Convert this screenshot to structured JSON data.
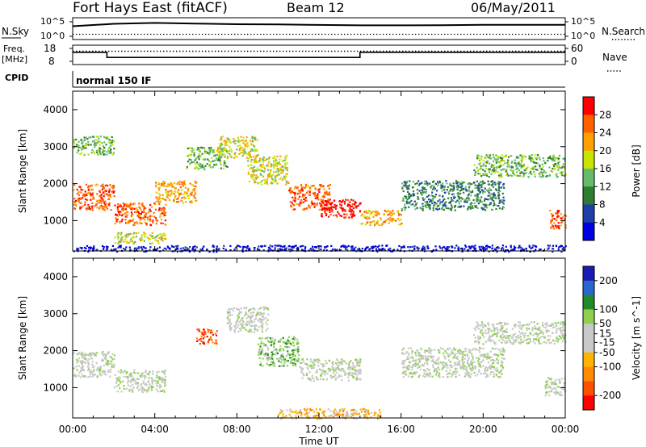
{
  "header": {
    "station": "Fort Hays East (fitACF)",
    "beam": "Beam 12",
    "date": "06/May/2011"
  },
  "left_labels": {
    "nsky": "N.Sky",
    "nsky_ticks": [
      "10^5",
      "10^0"
    ],
    "freq": "Freq.",
    "freq_unit": "[MHz]",
    "freq_ticks": [
      "18",
      "8"
    ],
    "cpid": "CPID"
  },
  "right_labels": {
    "nsearch": "N.Search",
    "nsearch_ticks": [
      "10^5",
      "10^0"
    ],
    "nave": "Nave",
    "nave_ticks": [
      "60",
      "0"
    ]
  },
  "cpid_text": "normal 150 IF",
  "colors": {
    "power": [
      "#0000e0",
      "#1f3fa8",
      "#2e7d32",
      "#66bb6a",
      "#c8e400",
      "#ffa000",
      "#ff6000",
      "#ff0000"
    ],
    "velocity": [
      "#1a1ab4",
      "#2b66cc",
      "#1f8a2a",
      "#8fd14f",
      "#c8c8c8",
      "#c8c8c8",
      "#ffb300",
      "#ff8c00",
      "#ff5000",
      "#ff0000"
    ]
  },
  "chart_data": [
    {
      "type": "line",
      "panel": "N.Sky / N.Search",
      "x": [
        "00:00",
        "02:00",
        "04:00",
        "06:00",
        "08:00",
        "10:00",
        "12:00",
        "14:00",
        "16:00",
        "18:00",
        "20:00",
        "22:00",
        "24:00"
      ],
      "series": [
        {
          "name": "N.Sky",
          "values": [
            3000,
            20000,
            40000,
            25000,
            15000,
            12000,
            8000,
            6000,
            6000,
            7000,
            9000,
            9000,
            9000
          ]
        },
        {
          "name": "N.Search",
          "values": [
            5,
            5,
            5,
            5,
            5,
            5,
            5,
            5,
            5,
            5,
            5,
            5,
            5
          ]
        }
      ],
      "ylim": [
        1,
        100000
      ],
      "yscale": "log"
    },
    {
      "type": "line",
      "panel": "Freq. / Nave",
      "x": [
        "00:00",
        "01:40",
        "01:40",
        "14:00",
        "14:00",
        "24:00"
      ],
      "series": [
        {
          "name": "Freq.",
          "values": [
            15,
            15,
            11,
            11,
            15,
            15
          ]
        },
        {
          "name": "Nave",
          "values": [
            47,
            47,
            47,
            47,
            47,
            47
          ]
        }
      ],
      "ylim": [
        8,
        18
      ],
      "ylim_right": [
        0,
        60
      ]
    },
    {
      "type": "heatmap",
      "panel": "Power",
      "xlabel": "",
      "ylabel": "Slant Range [km]",
      "xlim_hours": [
        0,
        24
      ],
      "ylim": [
        180,
        4500
      ],
      "xticks": [
        "00:00",
        "04:00",
        "08:00",
        "12:00",
        "16:00",
        "20:00",
        "00:00"
      ],
      "yticks": [
        1000,
        2000,
        3000,
        4000
      ],
      "colorbar": {
        "label": "Power [dB]",
        "ticks": [
          4,
          8,
          12,
          16,
          20,
          24,
          28
        ],
        "range": [
          0,
          32
        ]
      },
      "regions": [
        {
          "t0": 0.0,
          "t1": 2.0,
          "r0": 1300,
          "r1": 2000,
          "level": 6
        },
        {
          "t0": 0.0,
          "t1": 2.0,
          "r0": 2800,
          "r1": 3300,
          "level": 3
        },
        {
          "t0": 2.0,
          "t1": 4.5,
          "r0": 900,
          "r1": 1500,
          "level": 6
        },
        {
          "t0": 2.0,
          "t1": 4.5,
          "r0": 400,
          "r1": 700,
          "level": 4
        },
        {
          "t0": 4.0,
          "t1": 6.0,
          "r0": 1500,
          "r1": 2100,
          "level": 5
        },
        {
          "t0": 5.5,
          "t1": 7.5,
          "r0": 2400,
          "r1": 3000,
          "level": 3
        },
        {
          "t0": 7.0,
          "t1": 9.0,
          "r0": 2700,
          "r1": 3300,
          "level": 4
        },
        {
          "t0": 8.5,
          "t1": 10.5,
          "r0": 2000,
          "r1": 2800,
          "level": 4
        },
        {
          "t0": 10.5,
          "t1": 12.5,
          "r0": 1300,
          "r1": 2000,
          "level": 6
        },
        {
          "t0": 12.0,
          "t1": 14.0,
          "r0": 1100,
          "r1": 1600,
          "level": 7
        },
        {
          "t0": 14.0,
          "t1": 16.0,
          "r0": 900,
          "r1": 1300,
          "level": 5
        },
        {
          "t0": 16.0,
          "t1": 21.0,
          "r0": 1300,
          "r1": 2100,
          "level": 2
        },
        {
          "t0": 19.5,
          "t1": 24.0,
          "r0": 2200,
          "r1": 2800,
          "level": 3
        },
        {
          "t0": 23.2,
          "t1": 24.0,
          "r0": 800,
          "r1": 1300,
          "level": 6
        },
        {
          "t0": 0.0,
          "t1": 24.0,
          "r0": 180,
          "r1": 350,
          "level": 0
        }
      ]
    },
    {
      "type": "heatmap",
      "panel": "Velocity",
      "xlabel": "Time UT",
      "ylabel": "Slant Range [km]",
      "xlim_hours": [
        0,
        24
      ],
      "ylim": [
        180,
        4500
      ],
      "xticks": [
        "00:00",
        "04:00",
        "08:00",
        "12:00",
        "16:00",
        "20:00",
        "00:00"
      ],
      "yticks": [
        1000,
        2000,
        3000,
        4000
      ],
      "colorbar": {
        "label": "Velocity [m s^-1]",
        "ticks": [
          200,
          100,
          50,
          15,
          -15,
          -50,
          -100,
          -200
        ],
        "range": [
          -250,
          250
        ]
      },
      "regions": [
        {
          "t0": 0.0,
          "t1": 2.0,
          "r0": 1300,
          "r1": 2000,
          "level": 4
        },
        {
          "t0": 2.0,
          "t1": 4.5,
          "r0": 900,
          "r1": 1500,
          "level": 4
        },
        {
          "t0": 6.0,
          "t1": 7.0,
          "r0": 2200,
          "r1": 2600,
          "level": 8
        },
        {
          "t0": 7.5,
          "t1": 9.5,
          "r0": 2500,
          "r1": 3200,
          "level": 4
        },
        {
          "t0": 9.0,
          "t1": 11.0,
          "r0": 1600,
          "r1": 2400,
          "level": 3
        },
        {
          "t0": 11.0,
          "t1": 14.0,
          "r0": 1200,
          "r1": 1800,
          "level": 4
        },
        {
          "t0": 10.0,
          "t1": 15.0,
          "r0": 180,
          "r1": 450,
          "level": 6
        },
        {
          "t0": 16.0,
          "t1": 21.0,
          "r0": 1300,
          "r1": 2100,
          "level": 4
        },
        {
          "t0": 19.5,
          "t1": 24.0,
          "r0": 2200,
          "r1": 2800,
          "level": 4
        },
        {
          "t0": 23.0,
          "t1": 24.0,
          "r0": 800,
          "r1": 1300,
          "level": 4
        }
      ]
    }
  ]
}
